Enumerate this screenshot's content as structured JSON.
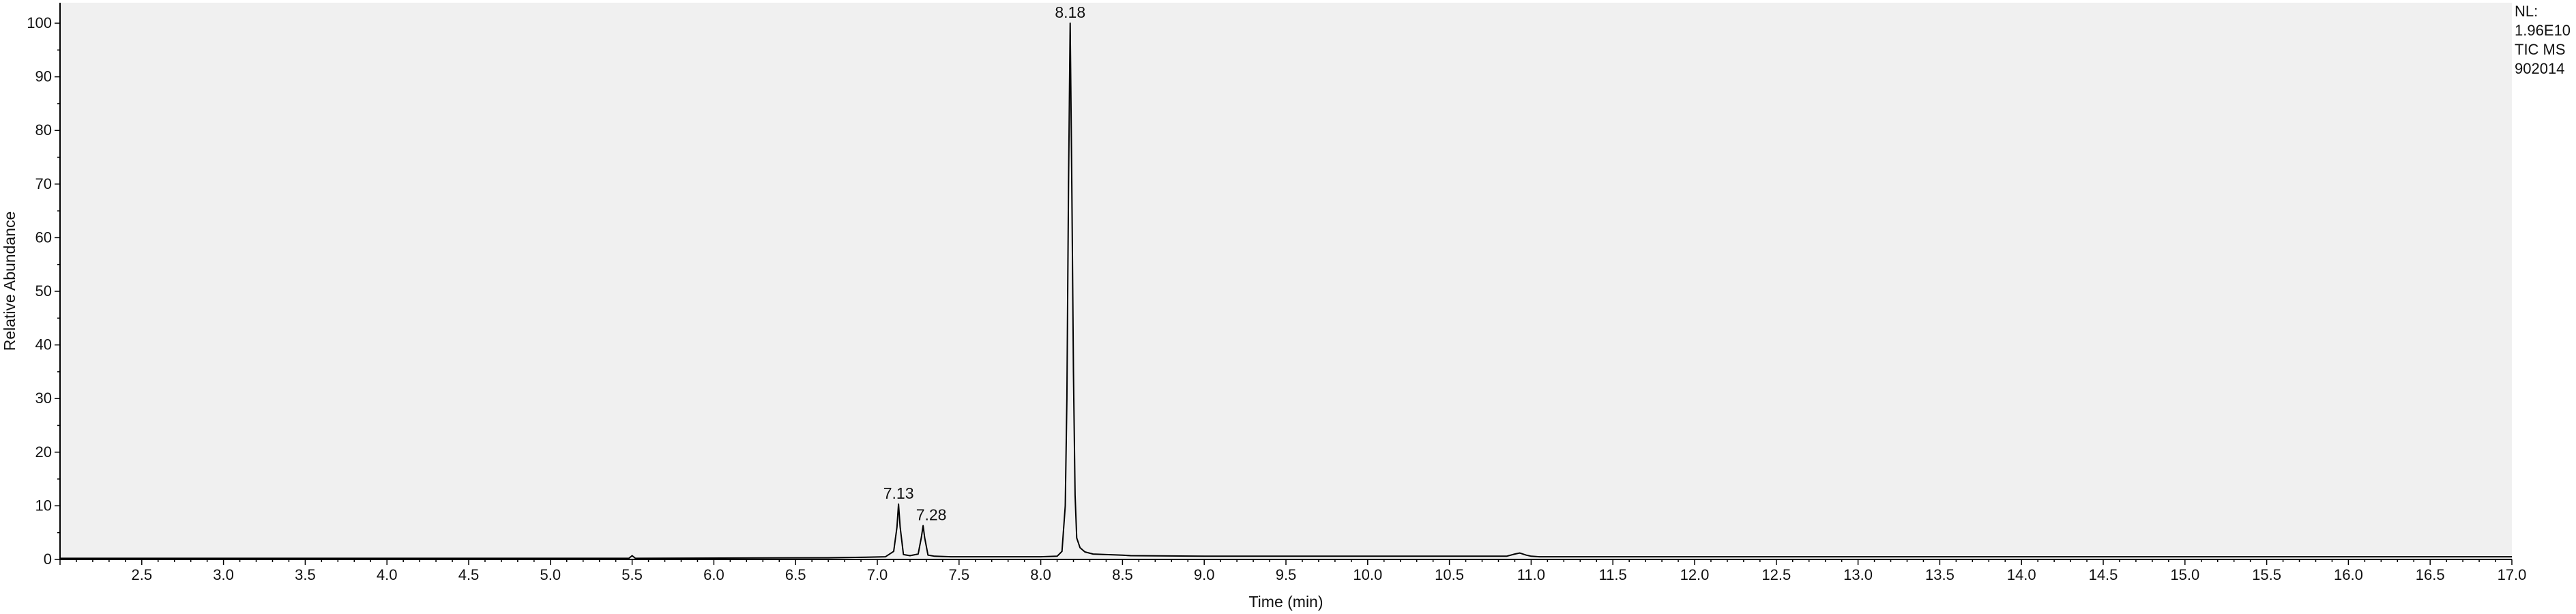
{
  "chart_data": {
    "type": "line",
    "ylabel": "Relative Abundance",
    "xlabel": "Time (min)",
    "xlim": [
      2.0,
      17.0
    ],
    "ylim": [
      0,
      100
    ],
    "x_ticks": [
      "2.5",
      "3.0",
      "3.5",
      "4.0",
      "4.5",
      "5.0",
      "5.5",
      "6.0",
      "6.5",
      "7.0",
      "7.5",
      "8.0",
      "8.5",
      "9.0",
      "9.5",
      "10.0",
      "10.5",
      "11.0",
      "11.5",
      "12.0",
      "12.5",
      "13.0",
      "13.5",
      "14.0",
      "14.5",
      "15.0",
      "15.5",
      "16.0",
      "16.5",
      "17.0"
    ],
    "y_ticks": [
      "0",
      "10",
      "20",
      "30",
      "40",
      "50",
      "60",
      "70",
      "80",
      "90",
      "100"
    ],
    "info_box": [
      "NL:",
      "1.96E10",
      "TIC  MS",
      "902014"
    ],
    "peak_labels": [
      {
        "x": 7.13,
        "y": 10.3,
        "label": "7.13"
      },
      {
        "x": 7.28,
        "y": 6.3,
        "label": "7.28"
      },
      {
        "x": 8.18,
        "y": 100,
        "label": "8.18"
      }
    ],
    "series": [
      {
        "x": [
          2.0,
          5.48,
          5.5,
          5.52,
          6.7,
          6.9,
          7.05,
          7.1,
          7.12,
          7.13,
          7.14,
          7.16,
          7.2,
          7.25,
          7.27,
          7.28,
          7.29,
          7.31,
          7.35,
          7.45,
          7.6,
          7.8,
          8.0,
          8.1,
          8.13,
          8.15,
          8.16,
          8.17,
          8.18,
          8.19,
          8.2,
          8.21,
          8.22,
          8.24,
          8.27,
          8.32,
          8.4,
          8.5,
          8.55,
          9.0,
          10.0,
          10.85,
          10.9,
          10.93,
          10.97,
          11.0,
          11.05,
          12.0,
          14.0,
          17.0
        ],
        "y": [
          0.2,
          0.2,
          0.7,
          0.2,
          0.3,
          0.4,
          0.5,
          1.5,
          6.0,
          10.3,
          6.0,
          0.9,
          0.7,
          1.0,
          4.2,
          6.3,
          4.0,
          0.8,
          0.6,
          0.5,
          0.5,
          0.5,
          0.5,
          0.6,
          1.5,
          10.0,
          30.0,
          70.0,
          100.0,
          70.0,
          35.0,
          12.0,
          4.0,
          2.2,
          1.4,
          1.0,
          0.9,
          0.8,
          0.7,
          0.6,
          0.6,
          0.6,
          1.0,
          1.2,
          0.8,
          0.6,
          0.5,
          0.5,
          0.5,
          0.5
        ]
      }
    ]
  }
}
